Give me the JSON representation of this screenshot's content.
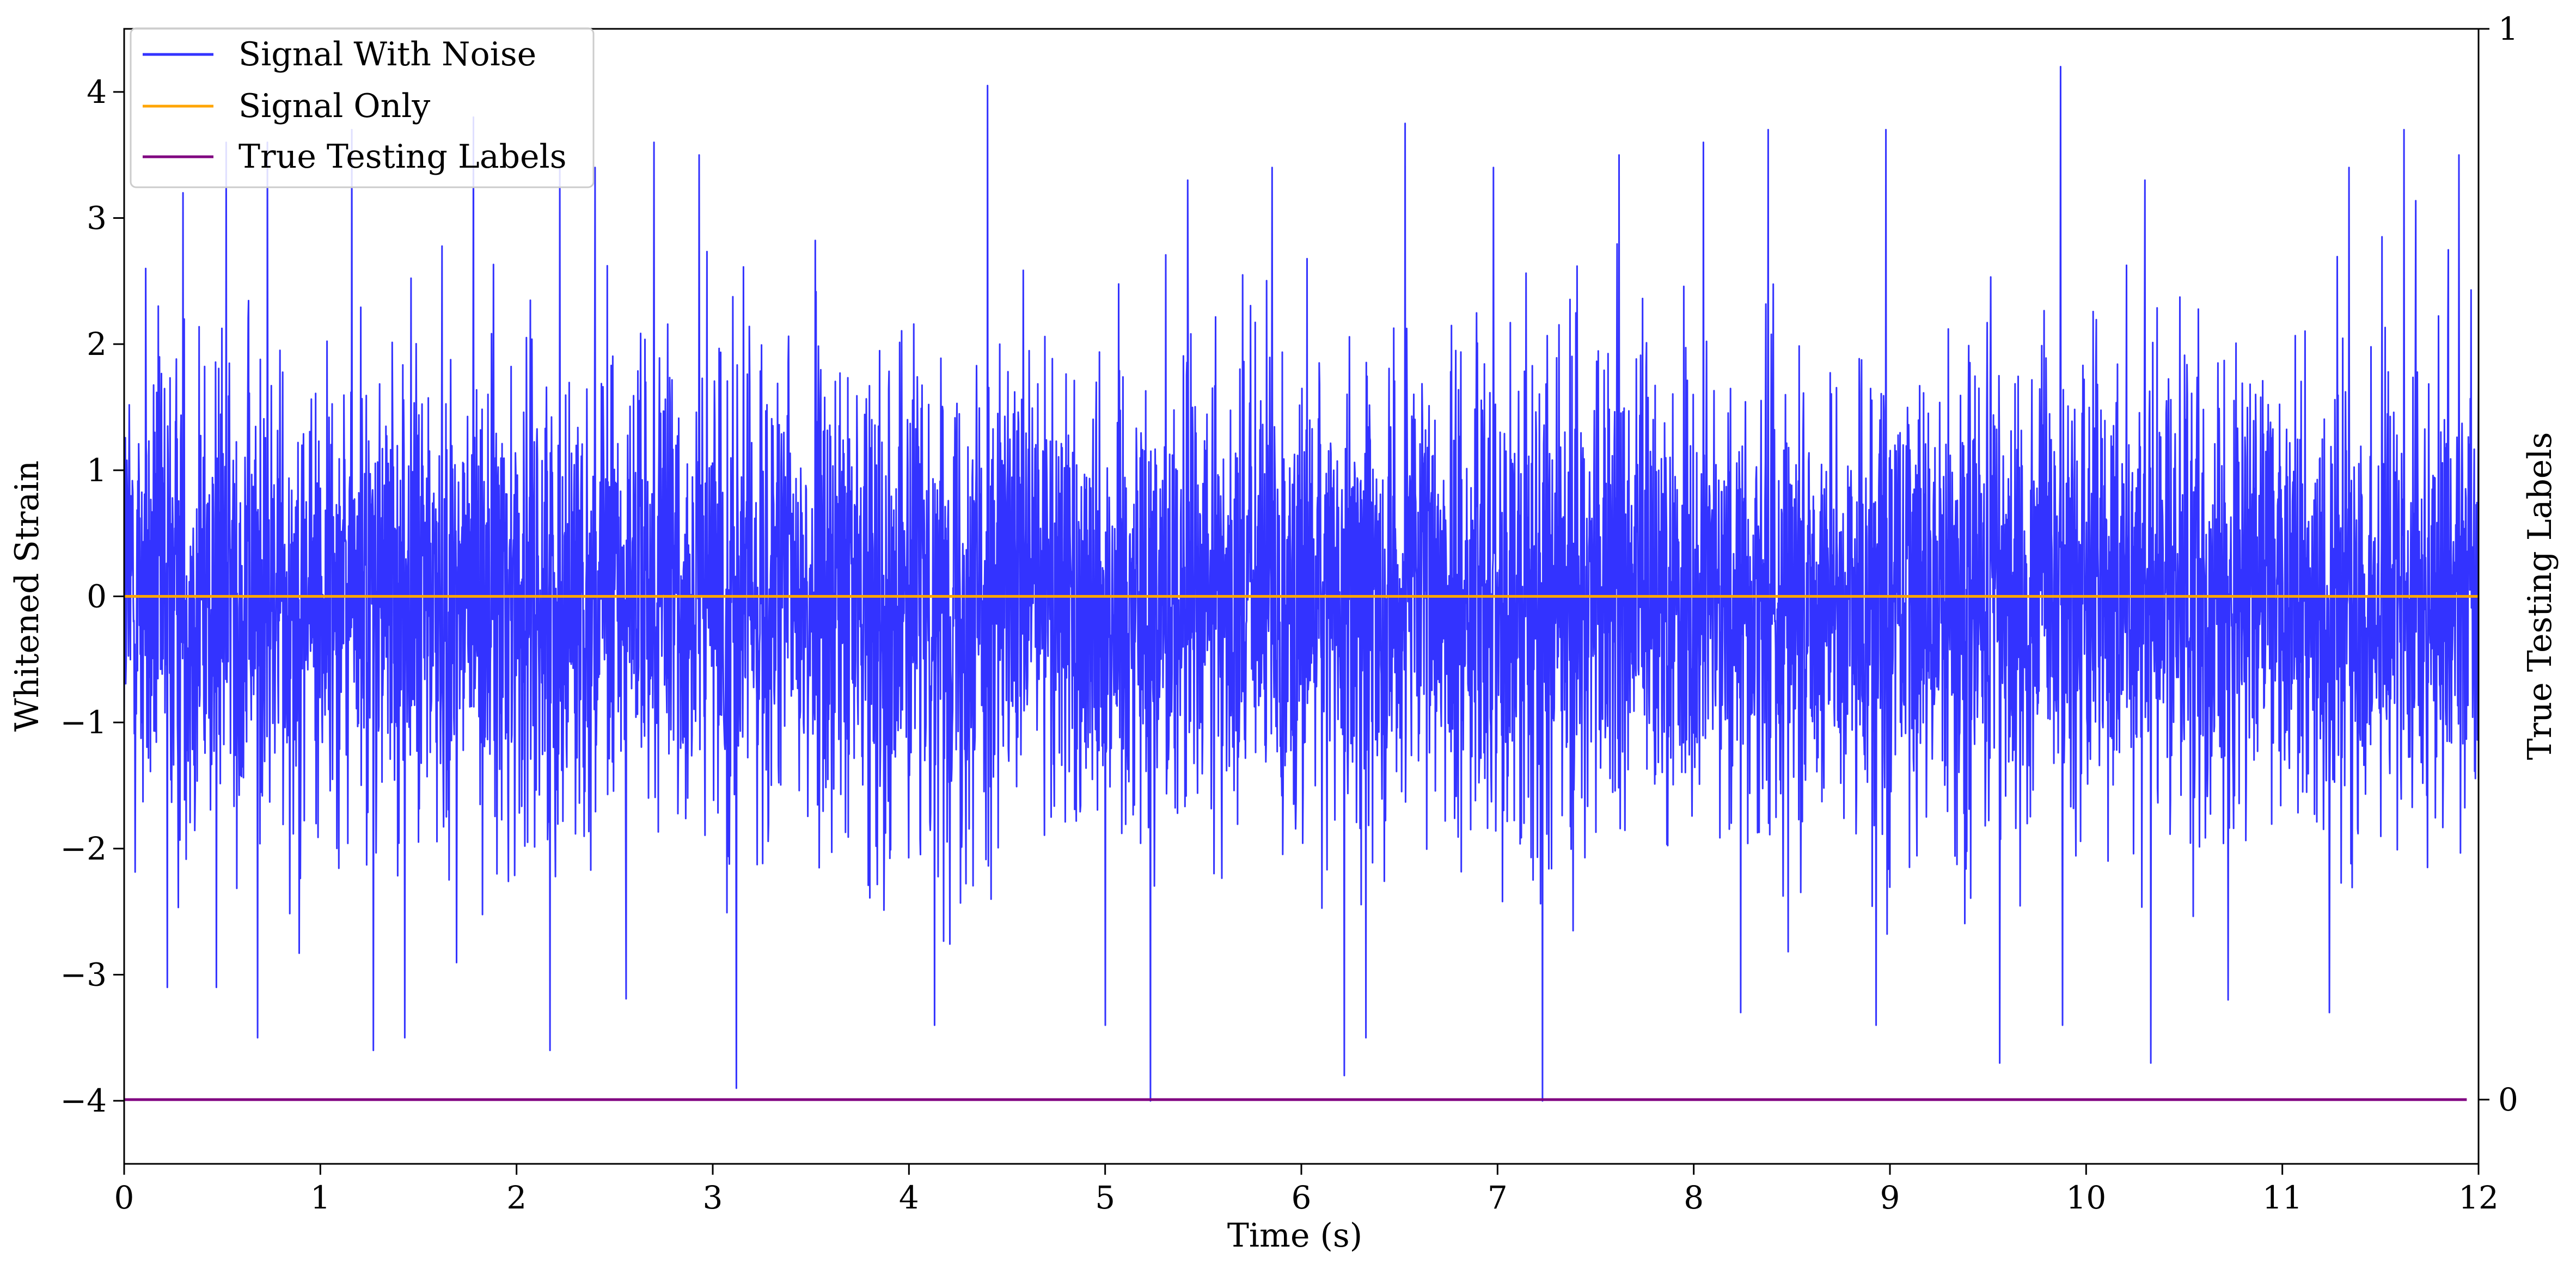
{
  "chart_data": {
    "type": "line",
    "title": "",
    "xlabel": "Time (s)",
    "ylabel": "Whitened Strain",
    "y2label": "True Testing Labels",
    "xlim": [
      0,
      12
    ],
    "ylim": [
      -4.5,
      4.5
    ],
    "y2lim": [
      -0.06,
      1.0
    ],
    "grid": false,
    "legend_position": "top-left",
    "x_ticks": [
      "0",
      "1",
      "2",
      "3",
      "4",
      "5",
      "6",
      "7",
      "8",
      "9",
      "10",
      "11",
      "12"
    ],
    "y_ticks": [
      "−4",
      "−3",
      "−2",
      "−1",
      "0",
      "1",
      "2",
      "3",
      "4"
    ],
    "y2_ticks": [
      "0",
      "1"
    ],
    "series": [
      {
        "name": "Signal With Noise",
        "color": "#3333ff",
        "axis": "left",
        "description_values": "dense noise centered at 0, typically within ±2, peaks up to about 4.2 and troughs down to about −4.0",
        "peaks": [
          [
            0.11,
            2.6
          ],
          [
            0.3,
            3.2
          ],
          [
            0.52,
            3.6
          ],
          [
            0.73,
            3.6
          ],
          [
            1.16,
            3.7
          ],
          [
            1.78,
            3.8
          ],
          [
            2.22,
            3.4
          ],
          [
            2.4,
            3.4
          ],
          [
            2.7,
            3.6
          ],
          [
            2.93,
            3.5
          ],
          [
            4.4,
            4.05
          ],
          [
            5.42,
            3.3
          ],
          [
            5.85,
            3.4
          ],
          [
            6.53,
            3.75
          ],
          [
            6.98,
            3.4
          ],
          [
            7.62,
            3.5
          ],
          [
            8.05,
            3.6
          ],
          [
            8.38,
            3.7
          ],
          [
            8.98,
            3.7
          ],
          [
            9.87,
            4.2
          ],
          [
            10.3,
            3.3
          ],
          [
            11.34,
            3.4
          ],
          [
            11.62,
            3.7
          ],
          [
            11.9,
            3.5
          ]
        ],
        "troughs": [
          [
            0.22,
            -3.1
          ],
          [
            0.47,
            -3.1
          ],
          [
            0.68,
            -3.5
          ],
          [
            1.27,
            -3.6
          ],
          [
            1.43,
            -3.5
          ],
          [
            2.17,
            -3.6
          ],
          [
            3.12,
            -3.9
          ],
          [
            4.13,
            -3.4
          ],
          [
            5.0,
            -3.4
          ],
          [
            5.23,
            -4.0
          ],
          [
            6.22,
            -3.8
          ],
          [
            6.33,
            -3.5
          ],
          [
            7.23,
            -4.0
          ],
          [
            8.24,
            -3.3
          ],
          [
            8.93,
            -3.4
          ],
          [
            9.56,
            -3.7
          ],
          [
            9.88,
            -3.4
          ],
          [
            10.33,
            -3.7
          ],
          [
            11.24,
            -3.3
          ]
        ]
      },
      {
        "name": "Signal Only",
        "color": "#ffa500",
        "axis": "left",
        "x": [
          0,
          12
        ],
        "y": [
          0,
          0
        ]
      },
      {
        "name": "True Testing Labels",
        "color": "#800080",
        "axis": "right",
        "x": [
          0,
          11.94
        ],
        "y": [
          0,
          0
        ]
      }
    ]
  }
}
